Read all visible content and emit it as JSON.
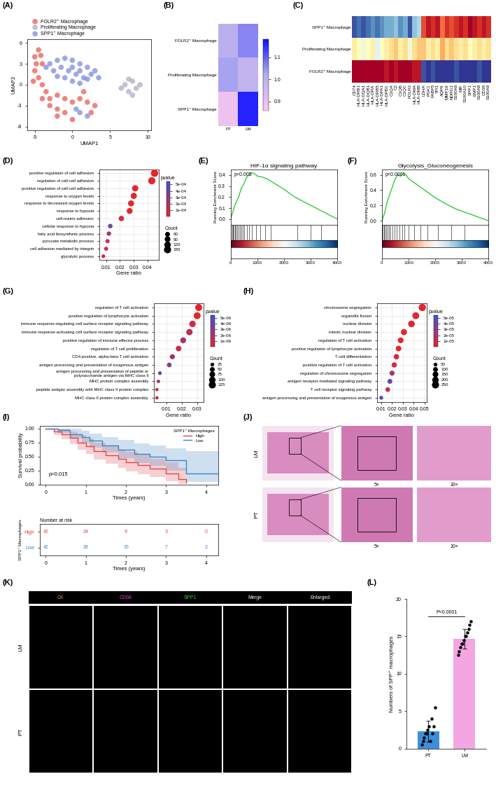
{
  "chart_data": [
    {
      "panel": "(A)",
      "type": "scatter",
      "xlabel": "UMAP1",
      "ylabel": "UMAP2",
      "xlim": [
        -6,
        10.5
      ],
      "ylim": [
        -6.5,
        6.5
      ],
      "xticks": [
        -5,
        0,
        5,
        10
      ],
      "yticks": [
        -6,
        -3,
        0,
        3,
        6
      ],
      "legend": "top",
      "series": [
        {
          "name": "FOLR2⁺ Macrophage",
          "color": "#e0352b",
          "x": [
            -5,
            -4.5,
            -4,
            -5,
            -4.5,
            -4,
            -3.5,
            -4,
            -3,
            -2,
            -1,
            0,
            1,
            2,
            3,
            -1,
            0,
            -2,
            1.5,
            -3,
            -4.8,
            -2,
            -5.2,
            -4.2,
            2.5
          ],
          "y": [
            4,
            5,
            3,
            2,
            1,
            0,
            -1,
            -2,
            -3,
            -3.5,
            -2,
            -2.5,
            -2,
            -2.5,
            -3,
            -4,
            -5,
            -1.5,
            -1,
            -2,
            3,
            -4.5,
            0.5,
            4.2,
            -4
          ]
        },
        {
          "name": "Proliferating Macrophage",
          "color": "#9d97b8",
          "x": [
            6.5,
            7,
            7.5,
            8,
            8.5,
            9,
            7.5,
            8
          ],
          "y": [
            -0.5,
            0,
            -1,
            0.5,
            -0.5,
            0,
            0.8,
            -1.5
          ]
        },
        {
          "name": "SPP1⁺ Macrophage",
          "color": "#5b6fd6",
          "x": [
            -3,
            -2,
            -1,
            0,
            1,
            2,
            2.5,
            1.5,
            0.5,
            -0.5,
            -1.5,
            -2.5,
            -1,
            0,
            1,
            2,
            3,
            -2,
            0,
            1,
            1,
            2,
            0.5,
            3.5,
            -3.5
          ],
          "y": [
            3,
            3.5,
            3.8,
            3.5,
            3,
            2.5,
            1.5,
            1,
            1.5,
            2,
            2.5,
            2,
            1,
            0.5,
            0.2,
            0.8,
            2,
            1.2,
            2.5,
            2,
            -4,
            -4.5,
            -3.5,
            1,
            2.5
          ]
        }
      ]
    },
    {
      "panel": "(B)",
      "type": "heatmap",
      "rows": [
        "FOLR2⁺ Macrophage",
        "Proliferating Macrophage",
        "SPP1⁺ Macrophage"
      ],
      "columns": [
        "PT",
        "LM"
      ],
      "cells": [
        [
          1.0,
          1.06
        ],
        [
          1.03,
          0.98
        ],
        [
          0.88,
          1.16
        ]
      ],
      "colorbar": {
        "range": [
          0.86,
          1.18
        ],
        "ticks": [
          0.9,
          1.0,
          1.1
        ]
      }
    },
    {
      "panel": "(C)",
      "type": "heatmap",
      "rows": [
        "SPP1⁺ Macrophage",
        "Proliferating Macrophage",
        "FOLR2⁺ Macrophage"
      ],
      "columns": [
        "CD74",
        "HLA-DRB1",
        "HLA-DQA1",
        "HLA-DQB1",
        "HLA-DRA",
        "HLA-DRB5",
        "HLA-DPA1",
        "HLA-DPB1",
        "C1QA",
        "C2",
        "C1QB",
        "C1QC",
        "FOLR2",
        "HLA-DMA",
        "HLA-DMB",
        "LDHA",
        "PGK1",
        "FABP5",
        "TPI1",
        "AQP9",
        "MMP19",
        "NDRG1",
        "S100A6",
        "MIF",
        "S100A10",
        "SPP1",
        "EMP1",
        "S100A8",
        "CD36",
        "S100A9"
      ],
      "cells": [
        [
          -0.9,
          -0.8,
          -0.9,
          -0.8,
          -0.7,
          -0.8,
          -0.7,
          -0.6,
          -0.6,
          -0.5,
          -0.7,
          -0.6,
          -0.9,
          -0.5,
          -0.4,
          0.7,
          0.9,
          0.8,
          0.9,
          0.6,
          0.8,
          0.7,
          0.8,
          0.9,
          0.8,
          1.0,
          0.9,
          0.8,
          0.9,
          0.8
        ],
        [
          0.1,
          0.0,
          -0.1,
          0.0,
          0.1,
          -0.2,
          0.0,
          0.1,
          0.2,
          0.3,
          0.1,
          0.2,
          -0.1,
          0.2,
          0.3,
          0.3,
          0.1,
          0.2,
          0.1,
          0.4,
          0.2,
          0.3,
          0.2,
          0.1,
          0.2,
          0.0,
          0.1,
          0.2,
          0.1,
          0.2
        ],
        [
          1.0,
          1.0,
          1.0,
          1.0,
          1.0,
          1.0,
          1.0,
          0.9,
          1.0,
          0.9,
          1.0,
          1.0,
          1.0,
          0.9,
          0.9,
          -0.9,
          -1.0,
          -0.9,
          -1.0,
          -1.0,
          -1.0,
          -1.0,
          -0.9,
          -1.0,
          -1.0,
          -1.0,
          -1.0,
          -0.9,
          -1.0,
          -1.0
        ]
      ],
      "zlim": [
        -1,
        1
      ]
    },
    {
      "panel": "(D)",
      "type": "dot",
      "xlabel": "Gene ratio",
      "grid": true,
      "categories": [
        "positive regulation of cell adhesion",
        "regulation of cell-cell adhesion",
        "positive regulation of cell-cell adhesion",
        "response to oxygen levels",
        "response to decreased oxygen levels",
        "response to hypoxia",
        "cell-matrix adhesion",
        "cellular response to hypoxia",
        "fatty acid biosynthetic process",
        "pyruvate metabolic process",
        "cell adhesion mediated by integrin",
        "glycolytic process"
      ],
      "values": [
        0.045,
        0.043,
        0.031,
        0.03,
        0.028,
        0.027,
        0.021,
        0.013,
        0.012,
        0.011,
        0.01,
        0.008
      ],
      "counts": [
        160,
        150,
        110,
        105,
        100,
        95,
        75,
        50,
        45,
        40,
        35,
        30
      ],
      "pvalues": [
        1e-05,
        1e-05,
        1e-05,
        1e-05,
        1e-05,
        1e-05,
        5e-05,
        0.0004,
        0.0002,
        0.0001,
        0.0001,
        0.0001
      ],
      "xlim": [
        0.005,
        0.048
      ],
      "xticks": [
        0.01,
        0.02,
        0.03,
        0.04
      ],
      "size_title": "Count",
      "size_ticks": [
        60,
        90,
        120,
        150
      ],
      "colorbar": {
        "title": "pvalue",
        "range": [
          0,
          0.00055
        ],
        "ticks": [
          {
            "value": 0.0001,
            "label": "1e-04"
          },
          {
            "value": 0.0002,
            "label": "2e-04"
          },
          {
            "value": 0.0003,
            "label": "3e-04"
          },
          {
            "value": 0.0004,
            "label": "4e-04"
          },
          {
            "value": 0.0005,
            "label": "5e-04"
          }
        ]
      }
    },
    {
      "panel": "(E)",
      "type": "line",
      "title": "HIF-1α signaling pathway",
      "annotation": "p<0.005",
      "ylabel": "Running Enrichment Score",
      "color": "#33cc33",
      "x": [
        0,
        100,
        200,
        300,
        400,
        500,
        600,
        700,
        800,
        900,
        1000,
        1200,
        1400,
        1600,
        1800,
        2000,
        2400,
        2800,
        3200,
        3600,
        4000
      ],
      "values": [
        0,
        0.08,
        0.15,
        0.2,
        0.28,
        0.32,
        0.38,
        0.4,
        0.42,
        0.41,
        0.39,
        0.38,
        0.36,
        0.33,
        0.3,
        0.27,
        0.2,
        0.15,
        0.1,
        0.05,
        0.0
      ],
      "hits": [
        20,
        50,
        80,
        120,
        160,
        200,
        250,
        300,
        350,
        400,
        450,
        500,
        600,
        700,
        800,
        950,
        1100,
        1300,
        1500,
        2500,
        3000,
        3400
      ],
      "xlim": [
        0,
        4000
      ],
      "xticks": [
        0,
        1000,
        2000,
        3000,
        4000
      ],
      "ylim": [
        -0.05,
        0.45
      ],
      "yticks": [
        0.0,
        0.1,
        0.2,
        0.3,
        0.4
      ]
    },
    {
      "panel": "(F)",
      "type": "line",
      "title": "Glycolysis_Gluconeogenesis",
      "annotation": "p<0.0001",
      "ylabel": "Running Enrichment Score",
      "color": "#33cc33",
      "x": [
        0,
        100,
        200,
        300,
        400,
        500,
        600,
        700,
        800,
        900,
        1000,
        1200,
        1400,
        1600,
        1800,
        2000,
        2400,
        2800,
        3200,
        3600,
        4000
      ],
      "values": [
        0,
        0.1,
        0.25,
        0.35,
        0.45,
        0.55,
        0.6,
        0.58,
        0.62,
        0.6,
        0.55,
        0.5,
        0.45,
        0.4,
        0.35,
        0.3,
        0.22,
        0.15,
        0.1,
        0.05,
        0.0
      ],
      "hits": [
        10,
        40,
        70,
        100,
        150,
        200,
        260,
        320,
        400,
        480,
        560,
        650,
        750,
        850,
        1000,
        1200,
        1450,
        1700,
        2100,
        2600,
        3100
      ],
      "xlim": [
        0,
        4000
      ],
      "xticks": [
        0,
        1000,
        2000,
        3000,
        4000
      ],
      "ylim": [
        -0.05,
        0.67
      ],
      "yticks": [
        0.0,
        0.2,
        0.4,
        0.6
      ]
    },
    {
      "panel": "(G)",
      "type": "dot",
      "xlabel": "Gene ratio",
      "grid": true,
      "categories": [
        "regulation of T cell activation",
        "positive regulation of lymphocyte activation",
        "immune response-regulating cell surface receptor signaling pathway",
        "immune response-activating cell surface receptor signaling pathway",
        "positive regulation of immune effector process",
        "regulation of T cell proliferation",
        "CD4-positive, alpha-beta T cell activation",
        "antigen processing and presentation of exogenous antigen",
        "antigen processing and presentation of peptide or\npolysaccharide antigen via MHC class II",
        "MHC protein complex assembly",
        "peptide antigen assembly with MHC class II protein complex",
        "MHC class II protein complex assembly"
      ],
      "values": [
        0.031,
        0.03,
        0.027,
        0.025,
        0.021,
        0.018,
        0.014,
        0.012,
        0.006,
        0.005,
        0.004,
        0.004
      ],
      "counts": [
        120,
        115,
        100,
        95,
        80,
        70,
        55,
        45,
        25,
        20,
        18,
        18
      ],
      "pvalues": [
        1e-07,
        1e-07,
        1e-06,
        1.5e-06,
        2e-06,
        1e-06,
        2e-06,
        3e-06,
        5e-06,
        2e-06,
        1e-06,
        1e-06
      ],
      "xlim": [
        0.002,
        0.034
      ],
      "xticks": [
        0.01,
        0.02,
        0.03
      ],
      "size_title": "Count",
      "size_ticks": [
        25,
        50,
        75,
        100,
        125
      ],
      "colorbar": {
        "title": "pvalue",
        "range": [
          0,
          5.5e-06
        ],
        "ticks": [
          {
            "value": 1e-06,
            "label": "1e-06"
          },
          {
            "value": 2e-06,
            "label": "2e-06"
          },
          {
            "value": 3e-06,
            "label": "3e-06"
          },
          {
            "value": 4e-06,
            "label": "4e-06"
          },
          {
            "value": 5e-06,
            "label": "5e-06"
          }
        ]
      }
    },
    {
      "panel": "(H)",
      "type": "dot",
      "xlabel": "Gene ratio",
      "grid": true,
      "categories": [
        "chromosome segregation",
        "organelle fission",
        "nuclear division",
        "mitotic nuclear division",
        "regulation of T cell activation",
        "positive regulation of lymphocyte activation",
        "T cell differentiation",
        "positive regulation of T cell activation",
        "regulation of chromosome segregation",
        "antigen receptor-mediated signaling pathway",
        "T cell receptor signaling pathway",
        "antigen processing and presentation of exogenous antigen"
      ],
      "values": [
        0.048,
        0.042,
        0.038,
        0.031,
        0.028,
        0.026,
        0.024,
        0.022,
        0.02,
        0.018,
        0.016,
        0.01
      ],
      "counts": [
        260,
        230,
        210,
        170,
        150,
        140,
        130,
        120,
        110,
        100,
        90,
        55
      ],
      "pvalues": [
        1e-06,
        1e-06,
        1e-06,
        1e-06,
        1e-06,
        1e-06,
        5e-06,
        1e-05,
        2e-05,
        4e-05,
        1e-05,
        5e-05
      ],
      "xlim": [
        0.006,
        0.052
      ],
      "xticks": [
        0.01,
        0.02,
        0.03,
        0.04,
        0.05
      ],
      "size_title": "Count",
      "size_ticks": [
        50,
        100,
        150,
        200,
        250
      ],
      "colorbar": {
        "title": "pvalue",
        "range": [
          0,
          5.5e-05
        ],
        "ticks": [
          {
            "value": 1e-05,
            "label": "1e-05"
          },
          {
            "value": 2e-05,
            "label": "2e-05"
          },
          {
            "value": 3e-05,
            "label": "3e-05"
          },
          {
            "value": 4e-05,
            "label": "4e-05"
          },
          {
            "value": 5e-05,
            "label": "5e-05"
          }
        ]
      }
    },
    {
      "panel": "(I)",
      "type": "survival",
      "xlabel": "Times (years)",
      "ylabel": "Survival probability",
      "annotation": "p=0.015",
      "legend_title": "SPP1⁺ Macrophages",
      "legend": "upper right",
      "xlim": [
        -0.15,
        4.3
      ],
      "xticks": [
        0,
        1,
        2,
        3,
        4
      ],
      "ylim": [
        0,
        1.05
      ],
      "yticks": [
        {
          "value": 0,
          "label": "0.00"
        },
        {
          "value": 0.25,
          "label": "0.25"
        },
        {
          "value": 0.5,
          "label": "0.50"
        },
        {
          "value": 0.75,
          "label": "0.75"
        },
        {
          "value": 1,
          "label": "1.00"
        }
      ],
      "series": [
        {
          "name": "High",
          "color": "#e0474c",
          "x": [
            0,
            0.2,
            0.4,
            0.6,
            0.8,
            1.0,
            1.2,
            1.5,
            1.8,
            2.0,
            2.3,
            2.6,
            3.0,
            3.3,
            3.5
          ],
          "values": [
            1,
            0.95,
            0.9,
            0.83,
            0.75,
            0.68,
            0.6,
            0.52,
            0.46,
            0.4,
            0.35,
            0.28,
            0.2,
            0.1,
            0.03
          ],
          "lower": [
            1,
            0.88,
            0.81,
            0.72,
            0.62,
            0.54,
            0.45,
            0.37,
            0.3,
            0.24,
            0.19,
            0.13,
            0.06,
            0.01,
            0.0
          ],
          "upper": [
            1,
            1,
            0.99,
            0.95,
            0.88,
            0.82,
            0.75,
            0.68,
            0.62,
            0.58,
            0.53,
            0.46,
            0.4,
            0.3,
            0.2
          ]
        },
        {
          "name": "Low",
          "color": "#3d85c6",
          "x": [
            0,
            0.3,
            0.6,
            0.9,
            1.1,
            1.4,
            1.8,
            2.2,
            2.6,
            3.0,
            3.5,
            3.9,
            4.3
          ],
          "values": [
            1,
            0.97,
            0.9,
            0.85,
            0.78,
            0.7,
            0.62,
            0.55,
            0.5,
            0.43,
            0.2,
            0.2,
            0.2
          ],
          "lower": [
            1,
            0.92,
            0.82,
            0.75,
            0.66,
            0.57,
            0.47,
            0.39,
            0.33,
            0.25,
            0.05,
            0.05,
            0.05
          ],
          "upper": [
            1,
            1,
            0.99,
            0.96,
            0.91,
            0.85,
            0.79,
            0.73,
            0.7,
            0.65,
            0.6,
            0.6,
            0.6
          ]
        }
      ],
      "risk_table": {
        "title": "Number at risk",
        "label": "SPP1⁺ Macrophages",
        "xlabel": "Times (years)",
        "times": [
          0,
          1,
          2,
          3,
          4
        ],
        "rows": [
          {
            "name": "High",
            "values": [
              42,
              24,
              9,
              3,
              0
            ]
          },
          {
            "name": "Low",
            "values": [
              42,
              28,
              15,
              7,
              2
            ]
          }
        ]
      }
    },
    {
      "panel": "(L)",
      "type": "bar",
      "categories": [
        "PT",
        "LM"
      ],
      "values": [
        2.3,
        14.7
      ],
      "errors": [
        1.4,
        1.3
      ],
      "points": [
        [
          0.5,
          1,
          1.5,
          2,
          2,
          2.5,
          3,
          1,
          4,
          2,
          3,
          5.5
        ],
        [
          12.5,
          13,
          13.5,
          14,
          14,
          14.5,
          15,
          15,
          15.5,
          16,
          16.5,
          17
        ]
      ],
      "colors": [
        "#3d8fdb",
        "#f4a6e3"
      ],
      "ylabel": "Numbers of SPP⁺ macrophages",
      "annotation": "P<0.0001",
      "ylim": [
        0,
        20
      ],
      "yticks": [
        0,
        5,
        10,
        15,
        20
      ]
    }
  ],
  "images": [
    {
      "panel": "(J)",
      "rows": [
        "LM",
        "PT"
      ],
      "magnifications": [
        "5×",
        "10×"
      ]
    },
    {
      "panel": "(K)",
      "rows": [
        "LM",
        "PT"
      ],
      "columns": [
        "CK",
        "CD68",
        "SPP1",
        "Merge",
        "Enlarged"
      ]
    }
  ]
}
